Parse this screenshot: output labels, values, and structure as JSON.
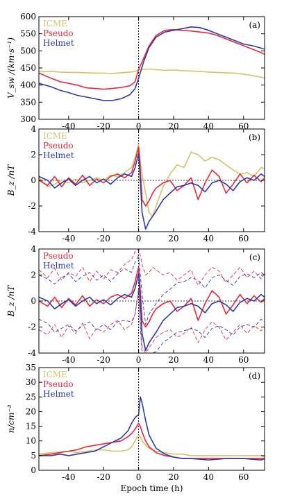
{
  "figure": {
    "xlabel": "Epoch time (h)",
    "xticks": [
      -40,
      -20,
      0,
      20,
      40,
      60
    ],
    "colors": {
      "ICME": "#d4c26a",
      "Pseudo": "#e8283a",
      "Helmet": "#2b3aa8",
      "axis": "#000000"
    }
  },
  "chart_data": [
    {
      "type": "line",
      "panel": "(a)",
      "ylabel": "V_sw /(km·s⁻¹)",
      "xlim": [
        -57,
        72
      ],
      "ylim": [
        300,
        600
      ],
      "yticks": [
        300,
        350,
        400,
        450,
        500,
        550,
        600
      ],
      "legend": [
        "ICME",
        "Pseudo",
        "Helmet"
      ],
      "x": [
        -57,
        -50,
        -45,
        -40,
        -35,
        -30,
        -25,
        -20,
        -15,
        -10,
        -5,
        -2,
        0,
        3,
        6,
        10,
        15,
        20,
        25,
        30,
        35,
        40,
        45,
        50,
        55,
        60,
        65,
        70,
        72
      ],
      "series": [
        {
          "name": "ICME",
          "values": [
            440,
            440,
            438,
            437,
            437,
            436,
            435,
            435,
            434,
            436,
            438,
            440,
            445,
            446,
            447,
            445,
            443,
            444,
            442,
            441,
            440,
            438,
            437,
            436,
            435,
            432,
            428,
            423,
            420
          ]
        },
        {
          "name": "Pseudo",
          "values": [
            435,
            420,
            410,
            405,
            400,
            392,
            390,
            388,
            390,
            393,
            398,
            410,
            445,
            480,
            515,
            545,
            560,
            562,
            560,
            558,
            555,
            552,
            545,
            535,
            525,
            515,
            505,
            495,
            490
          ]
        },
        {
          "name": "Helmet",
          "values": [
            405,
            395,
            385,
            378,
            370,
            365,
            360,
            355,
            355,
            360,
            372,
            390,
            420,
            470,
            510,
            540,
            555,
            560,
            565,
            570,
            568,
            560,
            550,
            540,
            530,
            520,
            515,
            508,
            505
          ]
        }
      ]
    },
    {
      "type": "line",
      "panel": "(b)",
      "ylabel": "B_z /nT",
      "xlim": [
        -57,
        72
      ],
      "ylim": [
        -4,
        4
      ],
      "yticks": [
        -4,
        -2,
        0,
        2,
        4
      ],
      "legend": [
        "ICME",
        "Pseudo",
        "Helmet"
      ],
      "x": [
        -57,
        -52,
        -48,
        -44,
        -40,
        -36,
        -32,
        -28,
        -24,
        -20,
        -16,
        -12,
        -8,
        -4,
        -2,
        0,
        1,
        2,
        4,
        6,
        8,
        10,
        14,
        18,
        22,
        26,
        30,
        34,
        38,
        42,
        46,
        50,
        54,
        58,
        62,
        66,
        70,
        72
      ],
      "series": [
        {
          "name": "ICME",
          "values": [
            0.2,
            -0.5,
            -0.3,
            0.0,
            -0.2,
            0.1,
            -0.2,
            0.0,
            0.2,
            0.0,
            0.4,
            0.3,
            0.6,
            1.0,
            1.8,
            2.8,
            1.5,
            0.5,
            -1.0,
            -2.5,
            -2.8,
            -2.0,
            -0.5,
            0.5,
            1.2,
            1.0,
            2.2,
            2.0,
            1.5,
            1.8,
            1.6,
            1.2,
            0.8,
            0.5,
            0.6,
            0.3,
            1.0,
            0.9
          ]
        },
        {
          "name": "Pseudo",
          "values": [
            0.0,
            -0.4,
            0.3,
            -0.5,
            0.2,
            -0.3,
            0.4,
            -0.4,
            0.1,
            -0.2,
            0.3,
            0.5,
            0.2,
            0.6,
            1.5,
            2.6,
            0.8,
            -1.5,
            -2.0,
            -1.6,
            -1.0,
            -0.6,
            -0.2,
            0.0,
            -0.8,
            -0.4,
            0.2,
            -1.5,
            -0.2,
            0.8,
            0.3,
            -1.0,
            -0.3,
            0.5,
            -0.2,
            0.4,
            -0.1,
            0.2
          ]
        },
        {
          "name": "Helmet",
          "values": [
            0.3,
            0.0,
            -0.6,
            -0.2,
            0.1,
            -0.4,
            0.0,
            0.3,
            -0.2,
            0.1,
            -0.3,
            0.2,
            0.5,
            0.3,
            1.0,
            2.1,
            0.0,
            -2.5,
            -3.8,
            -3.2,
            -2.8,
            -2.4,
            -1.5,
            -1.0,
            -0.5,
            -0.4,
            -0.2,
            -0.4,
            -0.9,
            -0.2,
            0.0,
            -0.3,
            -0.8,
            -0.1,
            0.2,
            0.0,
            0.5,
            0.3
          ]
        }
      ]
    },
    {
      "type": "line",
      "panel": "(c)",
      "ylabel": "B_z /nT",
      "xlim": [
        -57,
        72
      ],
      "ylim": [
        -4,
        4
      ],
      "yticks": [
        -4,
        -2,
        0,
        2,
        4
      ],
      "legend": [
        "Pseudo",
        "Helmet"
      ],
      "x": [
        -57,
        -52,
        -48,
        -44,
        -40,
        -36,
        -32,
        -28,
        -24,
        -20,
        -16,
        -12,
        -8,
        -4,
        -2,
        0,
        1,
        2,
        4,
        6,
        8,
        10,
        14,
        18,
        22,
        26,
        30,
        34,
        38,
        42,
        46,
        50,
        54,
        58,
        62,
        66,
        70,
        72
      ],
      "series": [
        {
          "name": "Pseudo",
          "values": [
            0.0,
            -0.4,
            0.3,
            -0.5,
            0.2,
            -0.3,
            0.4,
            -0.4,
            0.1,
            -0.2,
            0.3,
            0.5,
            0.2,
            0.6,
            1.5,
            2.6,
            0.8,
            -1.5,
            -2.0,
            -1.6,
            -1.0,
            -0.6,
            -0.2,
            0.0,
            -0.8,
            -0.4,
            0.2,
            -1.5,
            -0.2,
            0.8,
            0.3,
            -1.0,
            -0.3,
            0.5,
            -0.2,
            0.4,
            -0.1,
            0.2
          ]
        },
        {
          "name": "Helmet",
          "values": [
            0.3,
            0.0,
            -0.6,
            -0.2,
            0.1,
            -0.4,
            0.0,
            0.3,
            -0.2,
            0.1,
            -0.3,
            0.2,
            0.5,
            0.3,
            1.0,
            2.1,
            0.0,
            -2.5,
            -3.8,
            -3.2,
            -2.8,
            -2.4,
            -1.5,
            -1.0,
            -0.5,
            -0.4,
            -0.2,
            -0.4,
            -0.9,
            -0.2,
            0.0,
            -0.3,
            -0.8,
            -0.1,
            0.2,
            0.0,
            0.5,
            0.3
          ]
        },
        {
          "name": "Pseudo upper",
          "style": "dashed",
          "values": [
            2.4,
            1.8,
            2.5,
            1.6,
            2.2,
            1.9,
            2.6,
            1.5,
            2.3,
            1.7,
            2.4,
            2.2,
            2.8,
            3.2,
            3.8,
            4.0,
            3.5,
            2.8,
            2.0,
            2.2,
            2.6,
            2.4,
            2.0,
            2.2,
            1.6,
            2.0,
            2.4,
            1.2,
            2.0,
            2.6,
            2.3,
            1.4,
            2.0,
            2.6,
            1.8,
            2.3,
            1.7,
            2.1
          ]
        },
        {
          "name": "Pseudo lower",
          "style": "dashed",
          "values": [
            -2.2,
            -2.6,
            -1.8,
            -2.8,
            -1.9,
            -2.5,
            -1.7,
            -2.9,
            -2.1,
            -2.4,
            -1.8,
            -1.5,
            -2.2,
            -1.8,
            -1.0,
            1.0,
            -1.5,
            -3.5,
            -4.0,
            -3.6,
            -3.2,
            -2.8,
            -2.4,
            -2.2,
            -2.8,
            -2.5,
            -2.0,
            -3.2,
            -2.2,
            -1.6,
            -2.0,
            -3.0,
            -2.4,
            -1.8,
            -2.5,
            -1.9,
            -2.3,
            -2.0
          ]
        },
        {
          "name": "Helmet upper",
          "style": "dashed",
          "values": [
            2.0,
            1.7,
            1.3,
            1.8,
            2.1,
            1.5,
            1.9,
            2.2,
            1.6,
            2.0,
            1.5,
            2.1,
            2.5,
            2.2,
            3.0,
            3.5,
            2.0,
            0.5,
            -1.8,
            -1.0,
            -0.6,
            -0.2,
            0.5,
            0.9,
            1.4,
            1.5,
            1.8,
            1.6,
            1.0,
            1.8,
            2.0,
            1.6,
            1.2,
            1.9,
            2.1,
            1.8,
            2.2,
            2.0
          ]
        },
        {
          "name": "Helmet lower",
          "style": "dashed",
          "values": [
            -1.4,
            -1.7,
            -2.4,
            -2.1,
            -1.8,
            -2.3,
            -1.9,
            -1.6,
            -2.2,
            -1.8,
            -2.2,
            -1.6,
            -1.5,
            -1.6,
            -1.0,
            0.8,
            -2.0,
            -4.0,
            -4.0,
            -4.0,
            -4.0,
            -3.9,
            -3.2,
            -2.8,
            -2.4,
            -2.3,
            -2.1,
            -2.3,
            -2.8,
            -2.1,
            -1.9,
            -2.2,
            -2.6,
            -2.0,
            -1.8,
            -2.0,
            -1.4,
            -1.6
          ]
        }
      ]
    },
    {
      "type": "line",
      "panel": "(d)",
      "ylabel": "n/cm⁻³",
      "xlim": [
        -57,
        72
      ],
      "ylim": [
        0,
        35
      ],
      "yticks": [
        0,
        5,
        10,
        15,
        20,
        25,
        30,
        35
      ],
      "legend": [
        "ICME",
        "Pseudo",
        "Helmet"
      ],
      "x": [
        -57,
        -50,
        -45,
        -40,
        -35,
        -30,
        -25,
        -20,
        -15,
        -10,
        -6,
        -4,
        -2,
        0,
        1,
        2,
        4,
        6,
        10,
        15,
        20,
        25,
        30,
        40,
        50,
        60,
        70,
        72
      ],
      "series": [
        {
          "name": "ICME",
          "values": [
            5.5,
            6.0,
            6.2,
            6.5,
            6.0,
            6.5,
            6.8,
            7.0,
            6.5,
            6.5,
            7.0,
            8.0,
            10.0,
            12.0,
            11.5,
            10.0,
            8.5,
            7.5,
            6.5,
            6.0,
            5.5,
            5.5,
            5.0,
            5.0,
            5.0,
            5.0,
            5.0,
            4.5
          ]
        },
        {
          "name": "Pseudo",
          "values": [
            5.0,
            5.5,
            6.0,
            6.5,
            7.0,
            8.0,
            8.5,
            9.0,
            9.5,
            10.0,
            11.5,
            12.5,
            14.0,
            16.0,
            15.0,
            13.0,
            10.0,
            8.0,
            6.0,
            5.0,
            4.5,
            4.0,
            4.0,
            4.0,
            4.0,
            4.0,
            4.0,
            4.0
          ]
        },
        {
          "name": "Helmet",
          "values": [
            5.0,
            5.0,
            5.5,
            5.0,
            5.5,
            6.0,
            6.5,
            8.0,
            9.5,
            11.0,
            13.5,
            16.0,
            18.0,
            19.0,
            25.0,
            23.0,
            17.0,
            12.0,
            7.5,
            5.5,
            4.5,
            4.0,
            4.0,
            3.5,
            4.0,
            4.0,
            3.5,
            4.0
          ]
        }
      ]
    }
  ]
}
